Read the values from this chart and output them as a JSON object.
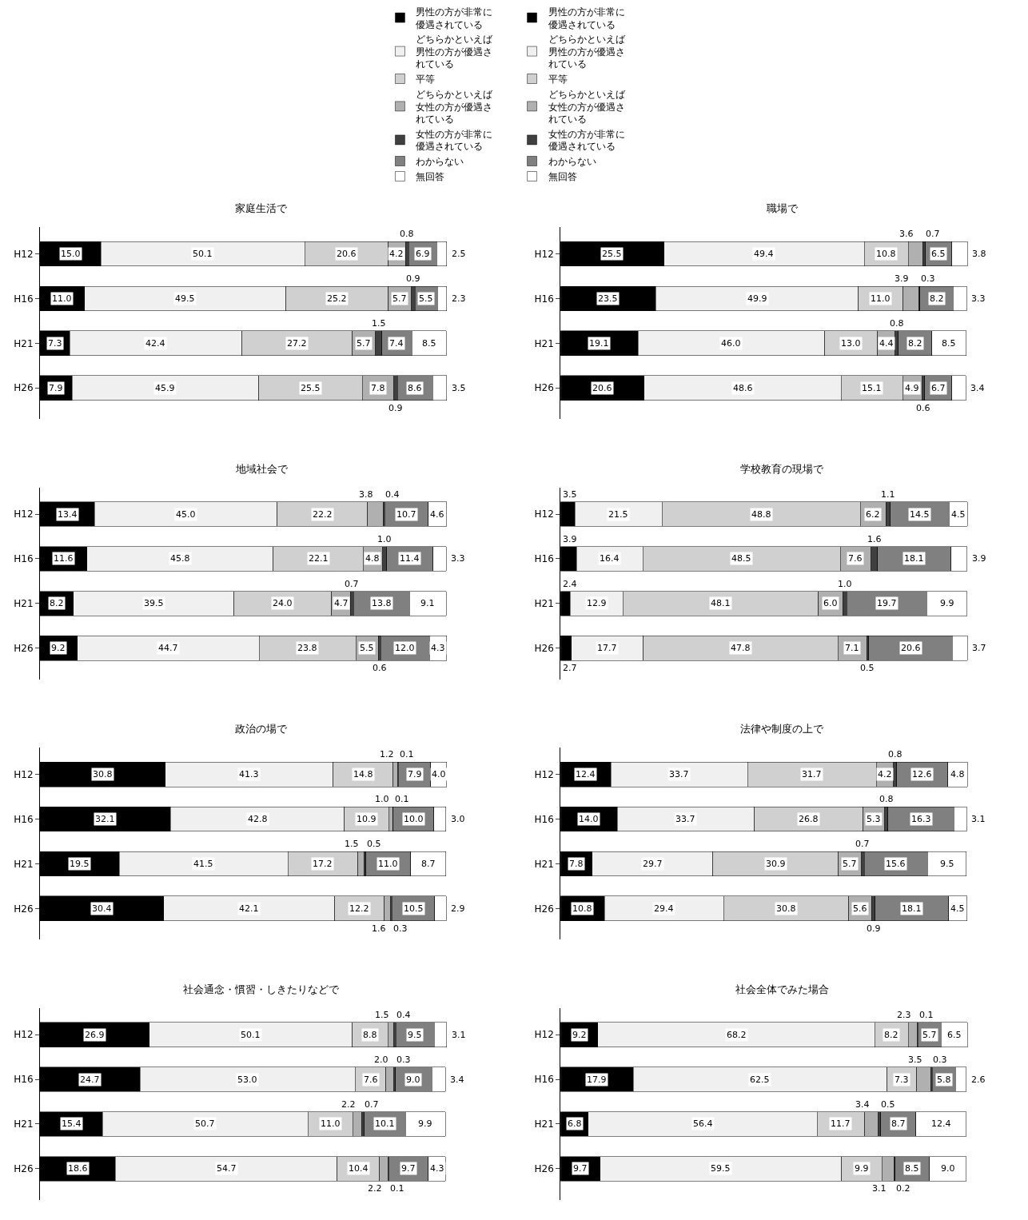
{
  "chart_data": [
    {
      "type": "bar",
      "orientation": "horizontal",
      "stacked": true,
      "tick_labels": "y",
      "legend": "top",
      "title": "家庭生活で",
      "categories": [
        "H12",
        "H16",
        "H21",
        "H26"
      ],
      "series": [
        {
          "name": "男性の方が非常に優遇されている",
          "color": "#000000",
          "values": [
            15.0,
            11.0,
            7.3,
            7.9
          ],
          "value_labels": [
            "15.0",
            "11.0",
            "7.3",
            "7.9"
          ]
        },
        {
          "name": "どちらかといえば男性の方が優遇されている",
          "color": "#f0f0f0",
          "values": [
            50.1,
            49.5,
            42.4,
            45.9
          ],
          "value_labels": [
            "50.1",
            "49.5",
            "42.4",
            "45.9"
          ]
        },
        {
          "name": "平等",
          "color": "#d0d0d0",
          "values": [
            20.6,
            25.2,
            27.2,
            25.5
          ],
          "value_labels": [
            "20.6",
            "25.2",
            "27.2",
            "25.5"
          ]
        },
        {
          "name": "どちらかといえば女性の方が優遇されている",
          "color": "#b0b0b0",
          "values": [
            4.2,
            5.7,
            5.7,
            7.8
          ],
          "value_labels": [
            "4.2",
            "5.7",
            "5.7",
            "7.8"
          ]
        },
        {
          "name": "女性の方が非常に優遇されている",
          "color": "#404040",
          "values": [
            0.8,
            0.9,
            1.5,
            0.9
          ],
          "value_labels": [
            "0.8",
            "0.9",
            "1.5",
            "0.9"
          ]
        },
        {
          "name": "わからない",
          "color": "#808080",
          "values": [
            6.9,
            5.5,
            7.4,
            8.6
          ],
          "value_labels": [
            "6.9",
            "5.5",
            "7.4",
            "8.6"
          ]
        },
        {
          "name": "無回答",
          "color": "#ffffff",
          "values": [
            2.5,
            2.3,
            8.5,
            3.5
          ],
          "value_labels": [
            "2.5",
            "2.3",
            "8.5",
            "3.5"
          ]
        }
      ]
    },
    {
      "type": "bar",
      "orientation": "horizontal",
      "stacked": true,
      "tick_labels": "y",
      "legend": "top",
      "title": "職場で",
      "categories": [
        "H12",
        "H16",
        "H21",
        "H26"
      ],
      "series": [
        {
          "name": "男性の方が非常に優遇されている",
          "color": "#000000",
          "values": [
            25.5,
            23.5,
            19.1,
            20.6
          ],
          "value_labels": [
            "25.5",
            "23.5",
            "19.1",
            "20.6"
          ]
        },
        {
          "name": "どちらかといえば男性の方が優遇されている",
          "color": "#f0f0f0",
          "values": [
            49.4,
            49.9,
            46.0,
            48.6
          ],
          "value_labels": [
            "49.4",
            "49.9",
            "46.0",
            "48.6"
          ]
        },
        {
          "name": "平等",
          "color": "#d0d0d0",
          "values": [
            10.8,
            11.0,
            13.0,
            15.1
          ],
          "value_labels": [
            "10.8",
            "11.0",
            "13.0",
            "15.1"
          ]
        },
        {
          "name": "どちらかといえば女性の方が優遇されている",
          "color": "#b0b0b0",
          "values": [
            3.6,
            3.9,
            4.4,
            4.9
          ],
          "value_labels": [
            "3.6",
            "3.9",
            "4.4",
            "4.9"
          ]
        },
        {
          "name": "女性の方が非常に優遇されている",
          "color": "#404040",
          "values": [
            0.7,
            0.3,
            0.8,
            0.6
          ],
          "value_labels": [
            "0.7",
            "0.3",
            "0.8",
            "0.6"
          ]
        },
        {
          "name": "わからない",
          "color": "#808080",
          "values": [
            6.5,
            8.2,
            8.2,
            6.7
          ],
          "value_labels": [
            "6.5",
            "8.2",
            "8.2",
            "6.7"
          ]
        },
        {
          "name": "無回答",
          "color": "#ffffff",
          "values": [
            3.8,
            3.3,
            8.5,
            3.4
          ],
          "value_labels": [
            "3.8",
            "3.3",
            "8.5",
            "3.4"
          ]
        }
      ]
    },
    {
      "type": "bar",
      "orientation": "horizontal",
      "stacked": true,
      "tick_labels": "y",
      "title": "地域社会で",
      "categories": [
        "H12",
        "H16",
        "H21",
        "H26"
      ],
      "series": [
        {
          "color": "#000000",
          "values": [
            13.4,
            11.6,
            8.2,
            9.2
          ],
          "value_labels": [
            "13.4",
            "11.6",
            "8.2",
            "9.2"
          ]
        },
        {
          "color": "#f0f0f0",
          "values": [
            45.0,
            45.8,
            39.5,
            44.7
          ],
          "value_labels": [
            "45.0",
            "45.8",
            "39.5",
            "44.7"
          ]
        },
        {
          "color": "#d0d0d0",
          "values": [
            22.2,
            22.1,
            24.0,
            23.8
          ],
          "value_labels": [
            "22.2",
            "22.1",
            "24.0",
            "23.8"
          ]
        },
        {
          "color": "#b0b0b0",
          "values": [
            3.8,
            4.8,
            4.7,
            5.5
          ],
          "value_labels": [
            "3.8",
            "4.8",
            "4.7",
            "5.5"
          ]
        },
        {
          "color": "#404040",
          "values": [
            0.4,
            1.0,
            0.7,
            0.6
          ],
          "value_labels": [
            "0.4",
            "1.0",
            "0.7",
            "0.6"
          ]
        },
        {
          "color": "#808080",
          "values": [
            10.7,
            11.4,
            13.8,
            12.0
          ],
          "value_labels": [
            "10.7",
            "11.4",
            "13.8",
            "12.0"
          ]
        },
        {
          "color": "#ffffff",
          "values": [
            4.6,
            3.3,
            9.1,
            4.3
          ],
          "value_labels": [
            "4.6",
            "3.3",
            "9.1",
            "4.3"
          ]
        }
      ]
    },
    {
      "type": "bar",
      "orientation": "horizontal",
      "stacked": true,
      "tick_labels": "y",
      "title": "学校教育の現場で",
      "categories": [
        "H12",
        "H16",
        "H21",
        "H26"
      ],
      "series": [
        {
          "color": "#000000",
          "values": [
            3.5,
            3.9,
            2.4,
            2.7
          ],
          "value_labels": [
            "3.5",
            "3.9",
            "2.4",
            "2.7"
          ]
        },
        {
          "color": "#f0f0f0",
          "values": [
            21.5,
            16.4,
            12.9,
            17.7
          ],
          "value_labels": [
            "21.5",
            "16.4",
            "12.9",
            "17.7"
          ]
        },
        {
          "color": "#d0d0d0",
          "values": [
            48.8,
            48.5,
            48.1,
            47.8
          ],
          "value_labels": [
            "48.8",
            "48.5",
            "48.1",
            "47.8"
          ]
        },
        {
          "color": "#b0b0b0",
          "values": [
            6.2,
            7.6,
            6.0,
            7.1
          ],
          "value_labels": [
            "6.2",
            "7.6",
            "6.0",
            "7.1"
          ]
        },
        {
          "color": "#404040",
          "values": [
            1.1,
            1.6,
            1.0,
            0.5
          ],
          "value_labels": [
            "1.1",
            "1.6",
            "1.0",
            "0.5"
          ]
        },
        {
          "color": "#808080",
          "values": [
            14.5,
            18.1,
            19.7,
            20.6
          ],
          "value_labels": [
            "14.5",
            "18.1",
            "19.7",
            "20.6"
          ]
        },
        {
          "color": "#ffffff",
          "values": [
            4.5,
            3.9,
            9.9,
            3.7
          ],
          "value_labels": [
            "4.5",
            "3.9",
            "9.9",
            "3.7"
          ]
        }
      ]
    },
    {
      "type": "bar",
      "orientation": "horizontal",
      "stacked": true,
      "tick_labels": "y",
      "title": "政治の場で",
      "categories": [
        "H12",
        "H16",
        "H21",
        "H26"
      ],
      "series": [
        {
          "color": "#000000",
          "values": [
            30.8,
            32.1,
            19.5,
            30.4
          ],
          "value_labels": [
            "30.8",
            "32.1",
            "19.5",
            "30.4"
          ]
        },
        {
          "color": "#f0f0f0",
          "values": [
            41.3,
            42.8,
            41.5,
            42.1
          ],
          "value_labels": [
            "41.3",
            "42.8",
            "41.5",
            "42.1"
          ]
        },
        {
          "color": "#d0d0d0",
          "values": [
            14.8,
            10.9,
            17.2,
            12.2
          ],
          "value_labels": [
            "14.8",
            "10.9",
            "17.2",
            "12.2"
          ]
        },
        {
          "color": "#b0b0b0",
          "values": [
            1.2,
            1.0,
            1.5,
            1.6
          ],
          "value_labels": [
            "1.2",
            "1.0",
            "1.5",
            "1.6"
          ]
        },
        {
          "color": "#404040",
          "values": [
            0.1,
            0.1,
            0.5,
            0.3
          ],
          "value_labels": [
            "0.1",
            "0.1",
            "0.5",
            "0.3"
          ]
        },
        {
          "color": "#808080",
          "values": [
            7.9,
            10.0,
            11.0,
            10.5
          ],
          "value_labels": [
            "7.9",
            "10.0",
            "11.0",
            "10.5"
          ]
        },
        {
          "color": "#ffffff",
          "values": [
            4.0,
            3.0,
            8.7,
            2.9
          ],
          "value_labels": [
            "4.0",
            "3.0",
            "8.7",
            "2.9"
          ]
        }
      ]
    },
    {
      "type": "bar",
      "orientation": "horizontal",
      "stacked": true,
      "tick_labels": "y",
      "title": "法律や制度の上で",
      "categories": [
        "H12",
        "H16",
        "H21",
        "H26"
      ],
      "series": [
        {
          "color": "#000000",
          "values": [
            12.4,
            14.0,
            7.8,
            10.8
          ],
          "value_labels": [
            "12.4",
            "14.0",
            "7.8",
            "10.8"
          ]
        },
        {
          "color": "#f0f0f0",
          "values": [
            33.7,
            33.7,
            29.7,
            29.4
          ],
          "value_labels": [
            "33.7",
            "33.7",
            "29.7",
            "29.4"
          ]
        },
        {
          "color": "#d0d0d0",
          "values": [
            31.7,
            26.8,
            30.9,
            30.8
          ],
          "value_labels": [
            "31.7",
            "26.8",
            "30.9",
            "30.8"
          ]
        },
        {
          "color": "#b0b0b0",
          "values": [
            4.2,
            5.3,
            5.7,
            5.6
          ],
          "value_labels": [
            "4.2",
            "5.3",
            "5.7",
            "5.6"
          ]
        },
        {
          "color": "#404040",
          "values": [
            0.8,
            0.8,
            0.7,
            0.9
          ],
          "value_labels": [
            "0.8",
            "0.8",
            "0.7",
            "0.9"
          ]
        },
        {
          "color": "#808080",
          "values": [
            12.6,
            16.3,
            15.6,
            18.1
          ],
          "value_labels": [
            "12.6",
            "16.3",
            "15.6",
            "18.1"
          ]
        },
        {
          "color": "#ffffff",
          "values": [
            4.8,
            3.1,
            9.5,
            4.5
          ],
          "value_labels": [
            "4.8",
            "3.1",
            "9.5",
            "4.5"
          ]
        }
      ]
    },
    {
      "type": "bar",
      "orientation": "horizontal",
      "stacked": true,
      "tick_labels": "y",
      "title": "社会通念・慣習・しきたりなどで",
      "categories": [
        "H12",
        "H16",
        "H21",
        "H26"
      ],
      "series": [
        {
          "color": "#000000",
          "values": [
            26.9,
            24.7,
            15.4,
            18.6
          ],
          "value_labels": [
            "26.9",
            "24.7",
            "15.4",
            "18.6"
          ]
        },
        {
          "color": "#f0f0f0",
          "values": [
            50.1,
            53.0,
            50.7,
            54.7
          ],
          "value_labels": [
            "50.1",
            "53.0",
            "50.7",
            "54.7"
          ]
        },
        {
          "color": "#d0d0d0",
          "values": [
            8.8,
            7.6,
            11.0,
            10.4
          ],
          "value_labels": [
            "8.8",
            "7.6",
            "11.0",
            "10.4"
          ]
        },
        {
          "color": "#b0b0b0",
          "values": [
            1.5,
            2.0,
            2.2,
            2.2
          ],
          "value_labels": [
            "1.5",
            "2.0",
            "2.2",
            "2.2"
          ]
        },
        {
          "color": "#404040",
          "values": [
            0.4,
            0.3,
            0.7,
            0.1
          ],
          "value_labels": [
            "0.4",
            "0.3",
            "0.7",
            "0.1"
          ]
        },
        {
          "color": "#808080",
          "values": [
            9.5,
            9.0,
            10.1,
            9.7
          ],
          "value_labels": [
            "9.5",
            "9.0",
            "10.1",
            "9.7"
          ]
        },
        {
          "color": "#ffffff",
          "values": [
            3.1,
            3.4,
            9.9,
            4.3
          ],
          "value_labels": [
            "3.1",
            "3.4",
            "9.9",
            "4.3"
          ]
        }
      ]
    },
    {
      "type": "bar",
      "orientation": "horizontal",
      "stacked": true,
      "tick_labels": "y",
      "title": "社会全体でみた場合",
      "categories": [
        "H12",
        "H16",
        "H21",
        "H26"
      ],
      "series": [
        {
          "color": "#000000",
          "values": [
            9.2,
            17.9,
            6.8,
            9.7
          ],
          "value_labels": [
            "9.2",
            "17.9",
            "6.8",
            "9.7"
          ]
        },
        {
          "color": "#f0f0f0",
          "values": [
            68.2,
            62.5,
            56.4,
            59.5
          ],
          "value_labels": [
            "68.2",
            "62.5",
            "56.4",
            "59.5"
          ]
        },
        {
          "color": "#d0d0d0",
          "values": [
            8.2,
            7.3,
            11.7,
            9.9
          ],
          "value_labels": [
            "8.2",
            "7.3",
            "11.7",
            "9.9"
          ]
        },
        {
          "color": "#b0b0b0",
          "values": [
            2.3,
            3.5,
            3.4,
            3.1
          ],
          "value_labels": [
            "2.3",
            "3.5",
            "3.4",
            "3.1"
          ]
        },
        {
          "color": "#404040",
          "values": [
            0.1,
            0.3,
            0.5,
            0.2
          ],
          "value_labels": [
            "0.1",
            "0.3",
            "0.5",
            "0.2"
          ]
        },
        {
          "color": "#808080",
          "values": [
            5.7,
            5.8,
            8.7,
            8.5
          ],
          "value_labels": [
            "5.7",
            "5.8",
            "8.7",
            "8.5"
          ]
        },
        {
          "color": "#ffffff",
          "values": [
            6.5,
            2.6,
            12.4,
            9.0
          ],
          "value_labels": [
            "6.5",
            "2.6",
            "12.4",
            "9.0"
          ]
        }
      ]
    }
  ]
}
